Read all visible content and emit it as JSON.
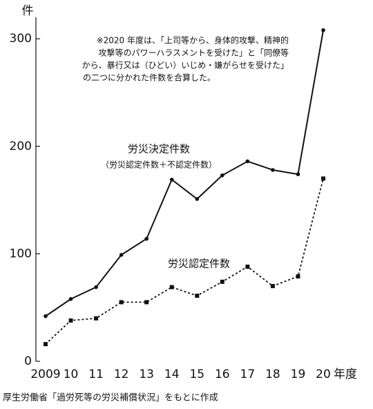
{
  "chart_data": {
    "type": "line",
    "y_unit": "件",
    "x_unit": "年度",
    "annotation": [
      "※2020 年度は、「上司等から、身体的攻撃、精神的",
      "攻撃等のパワーハラスメントを受けた」と「同僚等",
      "から、暴行又は（ひどい）いじめ・嫌がらせを受けた」",
      "の二つに分かれた件数を合算した。"
    ],
    "categories": [
      "2009",
      "10",
      "11",
      "12",
      "13",
      "14",
      "15",
      "16",
      "17",
      "18",
      "19",
      "20"
    ],
    "series": [
      {
        "name": "労災決定件数",
        "sublabel": "（労災認定件数＋不認定件数）",
        "color": "#111111",
        "line_style": "solid",
        "marker": "circle",
        "values": [
          42,
          58,
          69,
          99,
          114,
          169,
          151,
          173,
          186,
          178,
          174,
          308
        ]
      },
      {
        "name": "労災認定件数",
        "color": "#111111",
        "line_style": "dotted",
        "marker": "square",
        "values": [
          16,
          38,
          40,
          55,
          55,
          69,
          61,
          74,
          88,
          70,
          79,
          170
        ]
      }
    ],
    "ylim": [
      0,
      320
    ],
    "yticks": [
      0,
      100,
      200,
      300
    ],
    "source": "厚生労働省「過労死等の労災補償状況」をもとに作成"
  }
}
